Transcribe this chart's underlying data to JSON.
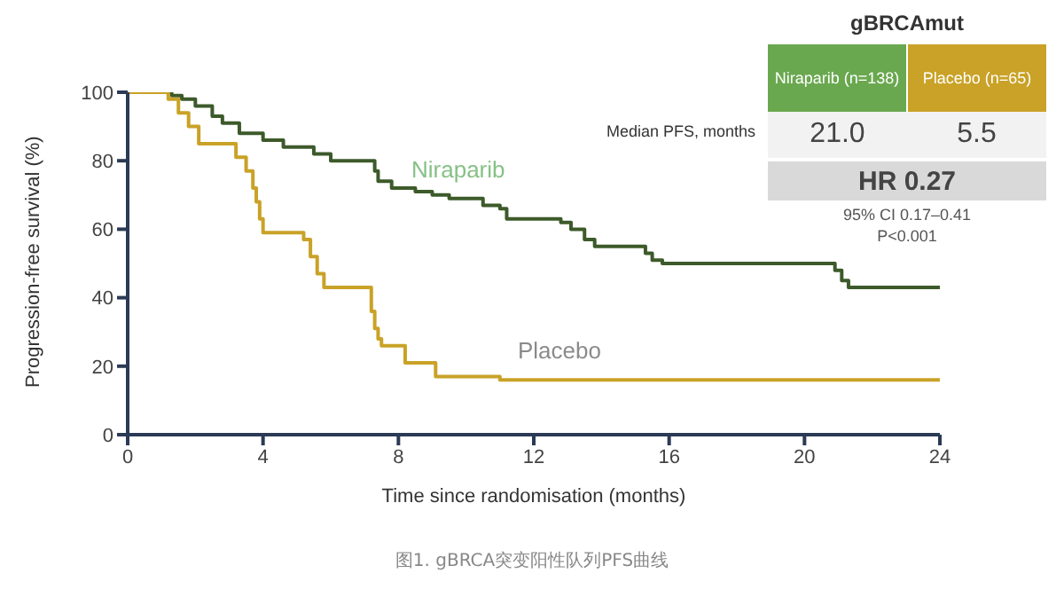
{
  "chart_data": {
    "type": "step",
    "xlabel": "Time  since randomisation  (months)",
    "ylabel": "Progression-free survival (%)",
    "xlim": [
      0,
      24
    ],
    "xticks": [
      0,
      4,
      8,
      12,
      16,
      20,
      24
    ],
    "ylim": [
      0,
      100
    ],
    "yticks": [
      0,
      20,
      40,
      60,
      80,
      100
    ],
    "marker": "none",
    "line_style": "solid",
    "series": [
      {
        "name": "Niraparib",
        "color": "#3d5a2a",
        "x": [
          0,
          1.3,
          1.6,
          2,
          2.5,
          2.8,
          3.3,
          4,
          4.6,
          5.5,
          6,
          7.3,
          7.4,
          7.8,
          8.5,
          9,
          9.5,
          10.5,
          11,
          11.2,
          12.8,
          13.1,
          13.5,
          13.8,
          15.3,
          15.5,
          15.8,
          20.9,
          21.1,
          21.3,
          24
        ],
        "values": [
          100,
          99,
          98,
          96,
          93,
          91,
          88,
          86,
          84,
          82,
          80,
          77,
          74,
          72,
          71,
          70,
          69,
          67,
          66,
          63,
          62,
          60,
          57,
          55,
          53,
          51,
          50,
          48,
          45,
          43,
          43
        ]
      },
      {
        "name": "Placebo",
        "color": "#c9a227",
        "x": [
          0,
          1.2,
          1.5,
          1.8,
          2.1,
          3.2,
          3.5,
          3.7,
          3.8,
          3.9,
          4,
          5.2,
          5.4,
          5.6,
          5.8,
          7.2,
          7.3,
          7.4,
          7.5,
          8.2,
          9.1,
          11,
          24
        ],
        "values": [
          100,
          98,
          94,
          90,
          85,
          81,
          77,
          72,
          68,
          63,
          59,
          57,
          52,
          47,
          43,
          36,
          31,
          28,
          26,
          21,
          17,
          16,
          16
        ]
      }
    ],
    "annotations": [
      "gBRCAmut",
      "Niraparib (n=138)",
      "Placebo (n=65)",
      "Median PFS, months",
      "21.0",
      "5.5",
      "HR 0.27",
      "95% CI 0.17–0.41",
      "P<0.001",
      "图1. gBRCA突变阳性队列PFS曲线"
    ]
  }
}
